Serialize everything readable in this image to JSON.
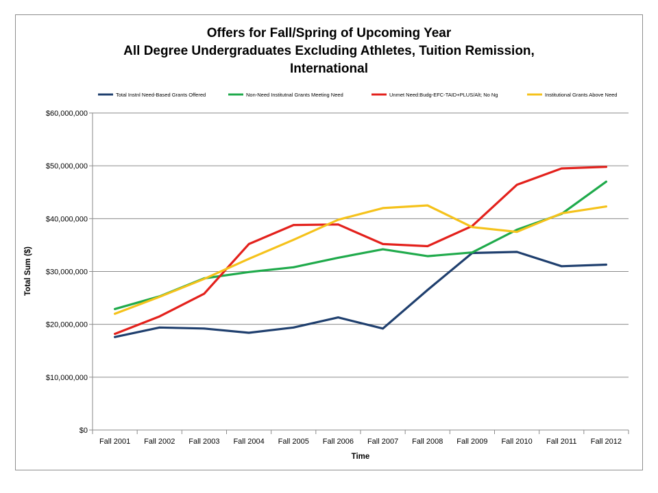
{
  "chart_data": {
    "type": "line",
    "title_lines": [
      "Offers for Fall/Spring of Upcoming Year",
      "All Degree Undergraduates Excluding Athletes, Tuition Remission,",
      "International"
    ],
    "xlabel": "Time",
    "ylabel": "Total  Sum  ($)",
    "categories": [
      "Fall 2001",
      "Fall 2002",
      "Fall 2003",
      "Fall 2004",
      "Fall 2005",
      "Fall 2006",
      "Fall 2007",
      "Fall 2008",
      "Fall 2009",
      "Fall 2010",
      "Fall 2011",
      "Fall 2012"
    ],
    "ylim": [
      0,
      60000000
    ],
    "yticks": [
      0,
      10000000,
      20000000,
      30000000,
      40000000,
      50000000,
      60000000
    ],
    "ytick_labels": [
      "$0",
      "$10,000,000",
      "$20,000,000",
      "$30,000,000",
      "$40,000,000",
      "$50,000,000",
      "$60,000,000"
    ],
    "grid": "horizontal",
    "legend_position": "top",
    "series": [
      {
        "name": "Total Instnl Need-Based Grants Offered",
        "color": "#1f3f6e",
        "values": [
          17600000,
          19400000,
          19200000,
          18400000,
          19400000,
          21300000,
          19200000,
          26500000,
          33500000,
          33700000,
          31000000,
          31300000
        ]
      },
      {
        "name": "Non-Need Institutnal Grants Meeting Need",
        "color": "#1faa4b",
        "values": [
          22900000,
          25300000,
          28700000,
          29900000,
          30800000,
          32600000,
          34200000,
          32900000,
          33600000,
          37900000,
          40900000,
          47000000
        ]
      },
      {
        "name": "Unmet Need:Budg-EFC-TAID+PLUS/Alt; No Ng",
        "color": "#e3211c",
        "values": [
          18200000,
          21500000,
          25800000,
          35200000,
          38800000,
          38900000,
          35200000,
          34800000,
          38600000,
          46400000,
          49500000,
          49800000
        ]
      },
      {
        "name": "Institutional Grants Above Need",
        "color": "#f5c21b",
        "values": [
          22000000,
          25200000,
          28600000,
          32400000,
          36000000,
          39800000,
          42000000,
          42500000,
          38400000,
          37500000,
          41000000,
          42300000
        ]
      }
    ]
  }
}
